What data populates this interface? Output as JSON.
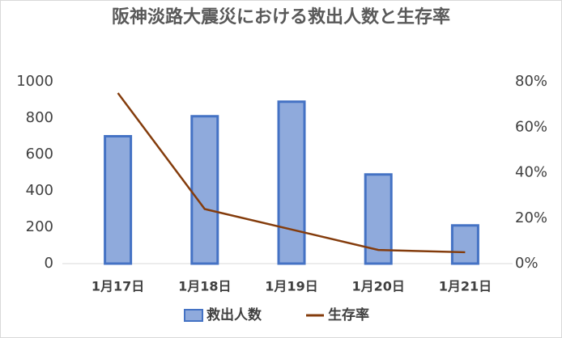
{
  "chart_data": {
    "type": "bar-line",
    "title": "阪神淡路大震災における救出人数と生存率",
    "categories": [
      "1月17日",
      "1月18日",
      "1月19日",
      "1月20日",
      "1月21日"
    ],
    "series": [
      {
        "name": "救出人数",
        "type": "bar",
        "color": "#8faadc",
        "edge": "#4472c4",
        "values": [
          700,
          810,
          890,
          490,
          210
        ]
      },
      {
        "name": "生存率",
        "type": "line",
        "axis": "y2",
        "color": "#843c0c",
        "values": [
          75,
          24,
          15,
          6,
          5
        ]
      }
    ],
    "ylim": [
      0,
      1000
    ],
    "yticks": [
      0,
      200,
      400,
      600,
      800,
      1000
    ],
    "y2lim": [
      0,
      80
    ],
    "y2ticks": [
      {
        "value": 0,
        "label": "0%"
      },
      {
        "value": 20,
        "label": "20%"
      },
      {
        "value": 40,
        "label": "40%"
      },
      {
        "value": 60,
        "label": "60%"
      },
      {
        "value": 80,
        "label": "80%"
      }
    ],
    "legend": "bottom"
  }
}
